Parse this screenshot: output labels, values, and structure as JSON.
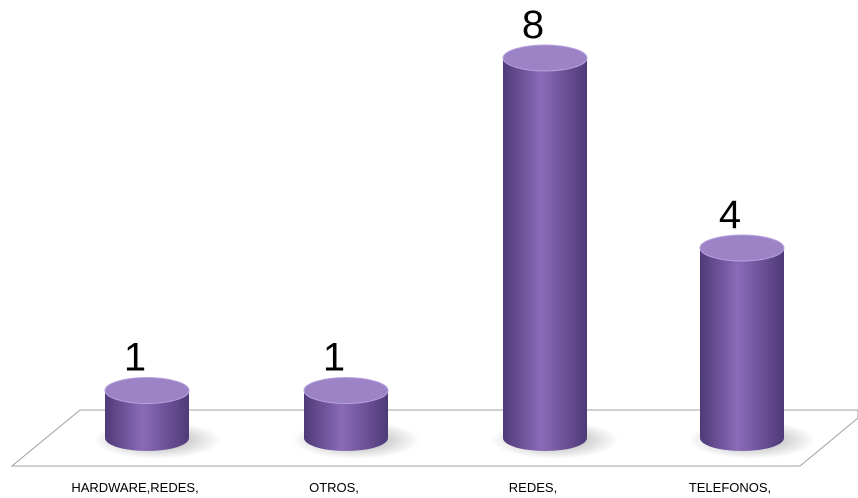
{
  "chart_data": {
    "type": "bar",
    "categories": [
      "HARDWARE,REDES,",
      "OTROS,",
      "REDES,",
      "TELEFONOS,"
    ],
    "values": [
      1,
      1,
      8,
      4
    ],
    "data_labels": [
      "1",
      "1",
      "8",
      "4"
    ],
    "title": "",
    "xlabel": "",
    "ylabel": "",
    "ylim": [
      0,
      8
    ],
    "grid": false,
    "legend": "none",
    "style": "3d-cylinder",
    "colors": {
      "bar": "#8a6bb8",
      "bar_dark": "#4f3a78",
      "bar_light": "#b9a3de",
      "top": "#9b83c6",
      "floor_stroke": "#a0a0a0"
    }
  }
}
